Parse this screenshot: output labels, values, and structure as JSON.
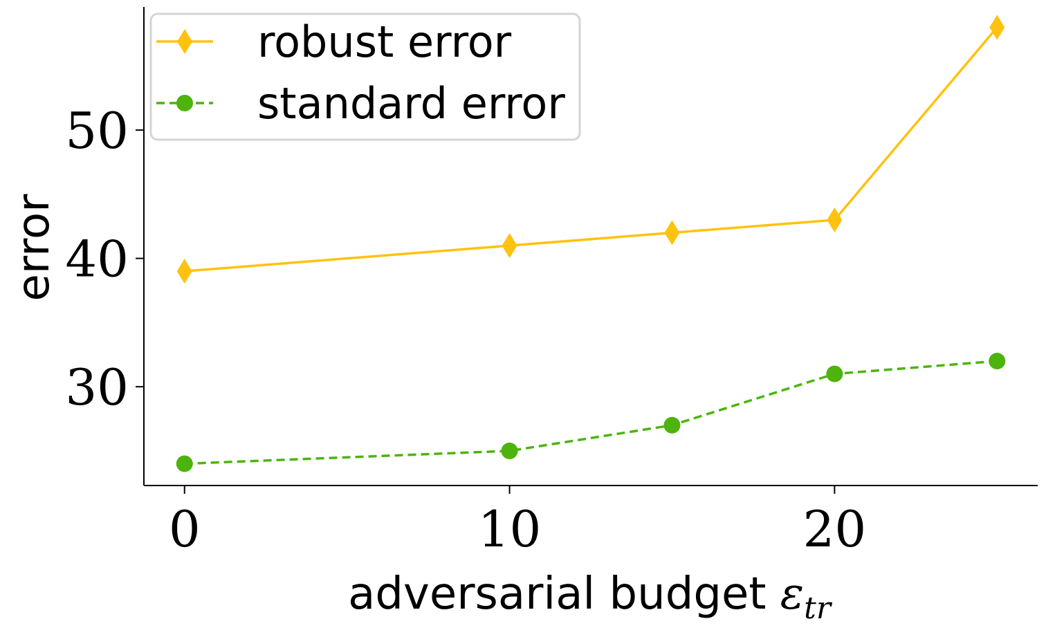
{
  "chart_data": {
    "type": "line",
    "xlabel_main": "adversarial budget ",
    "xlabel_symbol": "ε",
    "xlabel_sub": "tr",
    "ylabel": "error",
    "xlim": [
      -1.25,
      26.25
    ],
    "ylim": [
      22.3,
      59.6
    ],
    "xticks": [
      0,
      10,
      20
    ],
    "yticks": [
      30,
      40,
      50
    ],
    "x": [
      0,
      10,
      15,
      20,
      25
    ],
    "series": [
      {
        "name": "robust error",
        "values": [
          39,
          41,
          42,
          43,
          58
        ],
        "color": "#FFC20E",
        "line_style": "solid",
        "marker": "diamond"
      },
      {
        "name": "standard error",
        "values": [
          24,
          25,
          27,
          31,
          32
        ],
        "color": "#4DB30D",
        "line_style": "dashed",
        "marker": "circle"
      }
    ],
    "legend_position": "top-left",
    "grid": false
  }
}
